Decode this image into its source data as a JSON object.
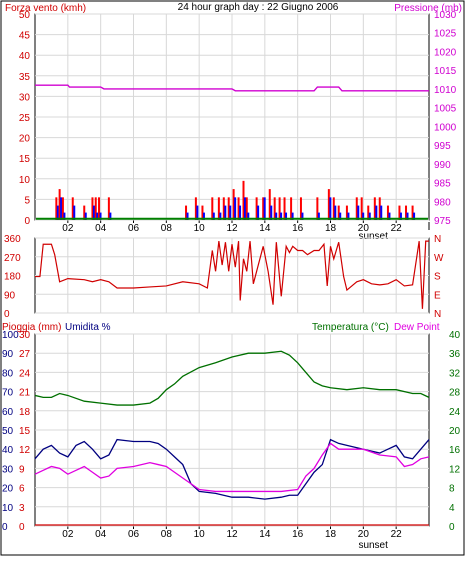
{
  "header": {
    "title": "24 hour graph day : 22 Giugno 2006",
    "left_label": "Forza vento (kmh)",
    "right_label": "Pressione (mb)"
  },
  "panel2": {
    "right_letters": [
      "N",
      "W",
      "S",
      "E",
      "N"
    ]
  },
  "panel3": {
    "left_label": "Pioggia (mm)",
    "mid_label": "Umidita %",
    "right_label": "Temperatura (°C)",
    "right_label2": "Dew Point"
  },
  "xaxis": {
    "ticks": [
      "02",
      "04",
      "06",
      "08",
      "10",
      "12",
      "14",
      "16",
      "18",
      "20",
      "22"
    ],
    "sunset_label": "sunset"
  },
  "colors": {
    "wind_gust": "#ff0000",
    "wind_avg": "#0000ff",
    "wind_low": "#008000",
    "pressure": "#d000d0",
    "direction": "#d00000",
    "humidity": "#000080",
    "temperature": "#007000",
    "dewpoint": "#e000e0",
    "rain": "#d00000",
    "grid": "#d8d8d8"
  },
  "chart_data": [
    {
      "type": "line",
      "title": "24 hour graph day : 22 Giugno 2006",
      "ylabel": "Forza vento (kmh)",
      "y2label": "Pressione (mb)",
      "ylim": [
        0,
        50
      ],
      "y2lim": [
        975,
        1030
      ],
      "yticks": [
        0,
        5,
        10,
        15,
        20,
        25,
        30,
        35,
        40,
        45,
        50
      ],
      "y2ticks": [
        975,
        980,
        985,
        990,
        995,
        1000,
        1005,
        1010,
        1015,
        1020,
        1025,
        1030
      ],
      "xlim": [
        0,
        24
      ],
      "series": [
        {
          "name": "Pressione (mb)",
          "x": [
            0,
            2,
            2.1,
            4,
            4.2,
            12,
            12.2,
            17,
            17.2,
            18.5,
            18.7,
            24
          ],
          "values": [
            1011,
            1011,
            1010.5,
            1010.5,
            1010,
            1010,
            1009.5,
            1009.5,
            1010.5,
            1010.5,
            1009.5,
            1009.5
          ]
        }
      ],
      "wind_bars": [
        {
          "x": 1.3,
          "gust": 5.5,
          "avg": 3.5
        },
        {
          "x": 1.5,
          "gust": 7.5,
          "avg": 5.5
        },
        {
          "x": 1.7,
          "gust": 5.5,
          "avg": 1.8
        },
        {
          "x": 2.3,
          "gust": 5.5,
          "avg": 3.5
        },
        {
          "x": 3.0,
          "gust": 3.5,
          "avg": 1.8
        },
        {
          "x": 3.5,
          "gust": 5.5,
          "avg": 3.5
        },
        {
          "x": 3.7,
          "gust": 5.5,
          "avg": 1.8
        },
        {
          "x": 3.9,
          "gust": 5.5,
          "avg": 1.8
        },
        {
          "x": 4.5,
          "gust": 5.5,
          "avg": 1.8
        },
        {
          "x": 9.2,
          "gust": 3.5,
          "avg": 1.8
        },
        {
          "x": 9.8,
          "gust": 5.5,
          "avg": 3.5
        },
        {
          "x": 10.2,
          "gust": 3.5,
          "avg": 1.8
        },
        {
          "x": 10.8,
          "gust": 5.5,
          "avg": 1.8
        },
        {
          "x": 11.2,
          "gust": 5.5,
          "avg": 1.8
        },
        {
          "x": 11.5,
          "gust": 5.5,
          "avg": 3.5
        },
        {
          "x": 11.8,
          "gust": 5.5,
          "avg": 3.5
        },
        {
          "x": 12.1,
          "gust": 7.5,
          "avg": 5.5
        },
        {
          "x": 12.4,
          "gust": 5.5,
          "avg": 3.5
        },
        {
          "x": 12.7,
          "gust": 9.5,
          "avg": 5.5
        },
        {
          "x": 12.9,
          "gust": 5.5,
          "avg": 1.8
        },
        {
          "x": 13.5,
          "gust": 5.5,
          "avg": 3.5
        },
        {
          "x": 13.9,
          "gust": 5.5,
          "avg": 5.5
        },
        {
          "x": 14.3,
          "gust": 7.5,
          "avg": 3.5
        },
        {
          "x": 14.6,
          "gust": 5.5,
          "avg": 1.8
        },
        {
          "x": 14.9,
          "gust": 5.5,
          "avg": 1.8
        },
        {
          "x": 15.2,
          "gust": 5.5,
          "avg": 1.8
        },
        {
          "x": 15.6,
          "gust": 5.5,
          "avg": 1.8
        },
        {
          "x": 16.2,
          "gust": 5.5,
          "avg": 1.8
        },
        {
          "x": 17.2,
          "gust": 5.5,
          "avg": 1.8
        },
        {
          "x": 17.9,
          "gust": 7.5,
          "avg": 5.5
        },
        {
          "x": 18.2,
          "gust": 5.5,
          "avg": 3.5
        },
        {
          "x": 18.5,
          "gust": 3.5,
          "avg": 1.8
        },
        {
          "x": 19.0,
          "gust": 3.5,
          "avg": 1.8
        },
        {
          "x": 19.6,
          "gust": 5.5,
          "avg": 3.5
        },
        {
          "x": 19.9,
          "gust": 5.5,
          "avg": 1.8
        },
        {
          "x": 20.3,
          "gust": 3.5,
          "avg": 1.8
        },
        {
          "x": 20.7,
          "gust": 5.5,
          "avg": 3.5
        },
        {
          "x": 21.0,
          "gust": 5.5,
          "avg": 3.5
        },
        {
          "x": 21.5,
          "gust": 3.5,
          "avg": 1.8
        },
        {
          "x": 22.2,
          "gust": 3.5,
          "avg": 1.8
        },
        {
          "x": 22.6,
          "gust": 3.5,
          "avg": 1.8
        },
        {
          "x": 23.0,
          "gust": 3.5,
          "avg": 1.8
        }
      ]
    },
    {
      "type": "line",
      "ylim": [
        0,
        360
      ],
      "yticks": [
        0,
        90,
        180,
        270,
        360
      ],
      "xlim": [
        0,
        24
      ],
      "series": [
        {
          "name": "direction",
          "x": [
            0,
            0.3,
            0.5,
            1.0,
            1.2,
            1.5,
            2.0,
            3.0,
            3.5,
            4.0,
            4.5,
            5.0,
            6.0,
            7.0,
            8.0,
            9.0,
            10.0,
            10.5,
            10.8,
            11.0,
            11.2,
            11.4,
            11.6,
            11.8,
            12.0,
            12.2,
            12.4,
            12.5,
            12.7,
            12.9,
            13.1,
            13.3,
            13.6,
            13.9,
            14.2,
            14.5,
            14.7,
            15.0,
            15.3,
            15.5,
            15.7,
            16.0,
            16.3,
            16.6,
            17.0,
            17.3,
            17.6,
            17.8,
            18.0,
            18.2,
            18.5,
            18.8,
            19.0,
            19.3,
            19.6,
            20.0,
            20.5,
            21.0,
            21.5,
            22.0,
            22.5,
            23.0,
            23.4,
            23.6,
            23.8,
            24
          ],
          "values": [
            175,
            175,
            330,
            330,
            280,
            150,
            165,
            160,
            150,
            160,
            150,
            120,
            120,
            125,
            130,
            150,
            140,
            120,
            300,
            200,
            345,
            230,
            340,
            200,
            330,
            220,
            345,
            60,
            260,
            200,
            345,
            140,
            230,
            320,
            200,
            40,
            340,
            80,
            320,
            290,
            320,
            300,
            300,
            280,
            300,
            300,
            330,
            130,
            320,
            260,
            340,
            175,
            110,
            130,
            150,
            160,
            140,
            135,
            140,
            160,
            130,
            135,
            345,
            20,
            345,
            345
          ]
        }
      ]
    },
    {
      "type": "line",
      "ylabel": "Pioggia (mm)",
      "ylabel2": "Umidita %",
      "y2label": "Temperatura (°C)",
      "y2label2": "Dew Point",
      "ylim": [
        0,
        100
      ],
      "y2lim": [
        0,
        40
      ],
      "yticks": [
        0,
        10,
        20,
        30,
        40,
        50,
        60,
        70,
        80,
        90,
        100
      ],
      "rain_ticks": [
        0,
        3,
        6,
        9,
        12,
        15,
        18,
        21,
        24,
        27,
        30
      ],
      "y2ticks": [
        0,
        4,
        8,
        12,
        16,
        20,
        24,
        28,
        32,
        36,
        40
      ],
      "xlim": [
        0,
        24
      ],
      "series": [
        {
          "name": "Umidita %",
          "x": [
            0,
            0.5,
            1.0,
            1.5,
            2.0,
            2.5,
            3.0,
            3.5,
            4.0,
            4.5,
            5.0,
            6.0,
            7.0,
            7.5,
            8.0,
            8.5,
            9.0,
            9.5,
            10.0,
            11.0,
            12.0,
            13.0,
            14.0,
            15.0,
            15.5,
            16.0,
            16.5,
            17.0,
            17.5,
            18.0,
            18.5,
            19.0,
            20.0,
            21.0,
            21.5,
            22.0,
            22.5,
            23.0,
            23.5,
            24
          ],
          "values": [
            35,
            40,
            42,
            38,
            36,
            42,
            44,
            40,
            35,
            37,
            45,
            44,
            44,
            43,
            40,
            36,
            32,
            22,
            18,
            17,
            15,
            15,
            14,
            15,
            16,
            16,
            22,
            28,
            32,
            45,
            43,
            42,
            40,
            38,
            40,
            42,
            36,
            35,
            40,
            45
          ]
        },
        {
          "name": "Temperatura (°C)",
          "x": [
            0,
            0.5,
            1.0,
            1.5,
            2.0,
            3.0,
            4.0,
            5.0,
            6.0,
            7.0,
            7.5,
            8.0,
            8.5,
            9.0,
            10.0,
            11.0,
            12.0,
            13.0,
            14.0,
            15.0,
            15.5,
            16.0,
            16.5,
            17.0,
            17.5,
            18.0,
            19.0,
            20.0,
            21.0,
            22.0,
            23.0,
            23.5,
            24
          ],
          "values": [
            27.2,
            26.8,
            26.8,
            27.6,
            27.2,
            26.0,
            25.6,
            25.2,
            25.2,
            25.6,
            26.6,
            28.4,
            29.6,
            31.2,
            33.0,
            34.0,
            35.2,
            36.0,
            36.0,
            36.4,
            35.6,
            34.0,
            32.0,
            30.0,
            29.2,
            28.8,
            28.4,
            28.8,
            28.4,
            28.4,
            27.6,
            27.6,
            26.8
          ]
        },
        {
          "name": "Dew Point",
          "x": [
            0,
            0.5,
            1.0,
            1.5,
            2.0,
            2.5,
            3.0,
            3.5,
            4.0,
            4.5,
            5.0,
            6.0,
            7.0,
            7.5,
            8.0,
            8.5,
            9.0,
            9.5,
            10.0,
            11.0,
            12.0,
            13.0,
            14.0,
            15.0,
            16.0,
            16.5,
            17.0,
            17.5,
            18.0,
            18.5,
            19.0,
            20.0,
            21.0,
            22.0,
            22.5,
            23.0,
            23.5,
            24
          ],
          "values": [
            10.8,
            11.6,
            12.4,
            12.0,
            10.8,
            11.6,
            12.4,
            11.2,
            10.0,
            10.4,
            12.0,
            12.4,
            13.2,
            12.8,
            12.4,
            11.2,
            10.0,
            8.8,
            7.6,
            7.2,
            7.2,
            7.2,
            7.2,
            7.2,
            7.6,
            10.4,
            12.0,
            14.8,
            17.2,
            16.0,
            16.0,
            16.0,
            14.8,
            14.4,
            12.4,
            12.8,
            14.0,
            14.4
          ]
        },
        {
          "name": "Pioggia (mm)",
          "x": [
            0,
            24
          ],
          "values": [
            0,
            0
          ]
        }
      ]
    }
  ]
}
